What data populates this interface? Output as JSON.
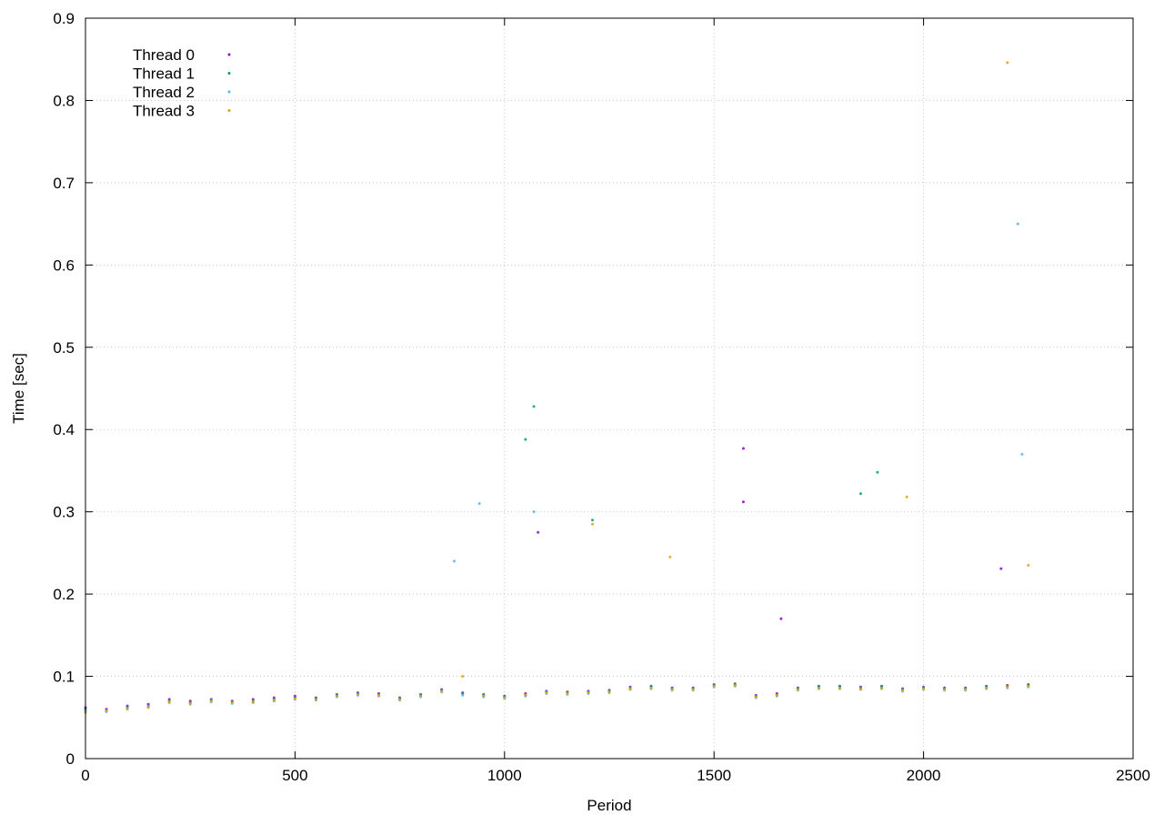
{
  "chart_data": {
    "type": "scatter",
    "title": "",
    "xlabel": "Period",
    "ylabel": "Time [sec]",
    "xlim": [
      0,
      2500
    ],
    "ylim": [
      0,
      0.9
    ],
    "xticks": [
      0,
      500,
      1000,
      1500,
      2000,
      2500
    ],
    "xtick_labels": [
      "0",
      "500",
      "1000",
      "1500",
      "2000",
      "2500"
    ],
    "yticks": [
      0,
      0.1,
      0.2,
      0.3,
      0.4,
      0.5,
      0.6,
      0.7,
      0.8,
      0.9
    ],
    "ytick_labels": [
      "0",
      "0.1",
      "0.2",
      "0.3",
      "0.4",
      "0.5",
      "0.6",
      "0.7",
      "0.8",
      "0.9"
    ],
    "grid": true,
    "legend_position": "top-left",
    "series": [
      {
        "name": "Thread 0",
        "color": "#9400d3",
        "points": [
          [
            0,
            0.062
          ],
          [
            50,
            0.06
          ],
          [
            100,
            0.064
          ],
          [
            150,
            0.066
          ],
          [
            200,
            0.072
          ],
          [
            250,
            0.07
          ],
          [
            300,
            0.072
          ],
          [
            350,
            0.07
          ],
          [
            400,
            0.072
          ],
          [
            450,
            0.074
          ],
          [
            500,
            0.076
          ],
          [
            550,
            0.074
          ],
          [
            600,
            0.078
          ],
          [
            650,
            0.08
          ],
          [
            700,
            0.079
          ],
          [
            750,
            0.074
          ],
          [
            800,
            0.078
          ],
          [
            850,
            0.084
          ],
          [
            900,
            0.08
          ],
          [
            950,
            0.078
          ],
          [
            1000,
            0.076
          ],
          [
            1050,
            0.079
          ],
          [
            1100,
            0.082
          ],
          [
            1150,
            0.081
          ],
          [
            1200,
            0.082
          ],
          [
            1250,
            0.083
          ],
          [
            1300,
            0.087
          ],
          [
            1350,
            0.088
          ],
          [
            1400,
            0.086
          ],
          [
            1450,
            0.086
          ],
          [
            1500,
            0.09
          ],
          [
            1550,
            0.091
          ],
          [
            1600,
            0.077
          ],
          [
            1650,
            0.079
          ],
          [
            1700,
            0.086
          ],
          [
            1750,
            0.088
          ],
          [
            1800,
            0.088
          ],
          [
            1850,
            0.087
          ],
          [
            1900,
            0.088
          ],
          [
            1950,
            0.085
          ],
          [
            2000,
            0.087
          ],
          [
            2050,
            0.086
          ],
          [
            2100,
            0.086
          ],
          [
            2150,
            0.088
          ],
          [
            2200,
            0.089
          ],
          [
            2250,
            0.09
          ],
          [
            1570,
            0.377
          ],
          [
            1570,
            0.312
          ],
          [
            1080,
            0.275
          ],
          [
            2185,
            0.231
          ],
          [
            1660,
            0.17
          ]
        ]
      },
      {
        "name": "Thread 1",
        "color": "#009e73",
        "points": [
          [
            0,
            0.06
          ],
          [
            50,
            0.058
          ],
          [
            100,
            0.062
          ],
          [
            150,
            0.064
          ],
          [
            200,
            0.07
          ],
          [
            250,
            0.068
          ],
          [
            300,
            0.071
          ],
          [
            350,
            0.069
          ],
          [
            400,
            0.07
          ],
          [
            450,
            0.072
          ],
          [
            500,
            0.074
          ],
          [
            550,
            0.073
          ],
          [
            600,
            0.077
          ],
          [
            650,
            0.079
          ],
          [
            700,
            0.078
          ],
          [
            750,
            0.073
          ],
          [
            800,
            0.077
          ],
          [
            850,
            0.083
          ],
          [
            900,
            0.079
          ],
          [
            950,
            0.077
          ],
          [
            1000,
            0.075
          ],
          [
            1050,
            0.078
          ],
          [
            1100,
            0.081
          ],
          [
            1150,
            0.08
          ],
          [
            1200,
            0.081
          ],
          [
            1250,
            0.082
          ],
          [
            1300,
            0.086
          ],
          [
            1350,
            0.087
          ],
          [
            1400,
            0.085
          ],
          [
            1450,
            0.085
          ],
          [
            1500,
            0.089
          ],
          [
            1550,
            0.09
          ],
          [
            1600,
            0.076
          ],
          [
            1650,
            0.078
          ],
          [
            1700,
            0.085
          ],
          [
            1750,
            0.087
          ],
          [
            1800,
            0.087
          ],
          [
            1850,
            0.086
          ],
          [
            1900,
            0.087
          ],
          [
            1950,
            0.084
          ],
          [
            2000,
            0.086
          ],
          [
            2050,
            0.085
          ],
          [
            2100,
            0.085
          ],
          [
            2150,
            0.087
          ],
          [
            2200,
            0.088
          ],
          [
            2250,
            0.089
          ],
          [
            1070,
            0.428
          ],
          [
            1050,
            0.388
          ],
          [
            1890,
            0.348
          ],
          [
            1850,
            0.322
          ],
          [
            1210,
            0.29
          ]
        ]
      },
      {
        "name": "Thread 2",
        "color": "#56b4e9",
        "points": [
          [
            0,
            0.058
          ],
          [
            50,
            0.057
          ],
          [
            100,
            0.061
          ],
          [
            150,
            0.063
          ],
          [
            200,
            0.068
          ],
          [
            250,
            0.066
          ],
          [
            300,
            0.069
          ],
          [
            350,
            0.067
          ],
          [
            400,
            0.068
          ],
          [
            450,
            0.07
          ],
          [
            500,
            0.072
          ],
          [
            550,
            0.071
          ],
          [
            600,
            0.075
          ],
          [
            650,
            0.077
          ],
          [
            700,
            0.076
          ],
          [
            750,
            0.071
          ],
          [
            800,
            0.075
          ],
          [
            850,
            0.081
          ],
          [
            900,
            0.077
          ],
          [
            950,
            0.075
          ],
          [
            1000,
            0.073
          ],
          [
            1050,
            0.076
          ],
          [
            1100,
            0.079
          ],
          [
            1150,
            0.078
          ],
          [
            1200,
            0.079
          ],
          [
            1250,
            0.08
          ],
          [
            1300,
            0.084
          ],
          [
            1350,
            0.085
          ],
          [
            1400,
            0.083
          ],
          [
            1450,
            0.083
          ],
          [
            1500,
            0.087
          ],
          [
            1550,
            0.088
          ],
          [
            1600,
            0.074
          ],
          [
            1650,
            0.076
          ],
          [
            1700,
            0.083
          ],
          [
            1750,
            0.085
          ],
          [
            1800,
            0.085
          ],
          [
            1850,
            0.084
          ],
          [
            1900,
            0.085
          ],
          [
            1950,
            0.082
          ],
          [
            2000,
            0.084
          ],
          [
            2050,
            0.083
          ],
          [
            2100,
            0.083
          ],
          [
            2150,
            0.085
          ],
          [
            2200,
            0.086
          ],
          [
            2250,
            0.087
          ],
          [
            2225,
            0.65
          ],
          [
            2235,
            0.37
          ],
          [
            940,
            0.31
          ],
          [
            1070,
            0.3
          ],
          [
            880,
            0.24
          ]
        ]
      },
      {
        "name": "Thread 3",
        "color": "#e69f00",
        "points": [
          [
            0,
            0.056
          ],
          [
            50,
            0.058
          ],
          [
            100,
            0.06
          ],
          [
            150,
            0.062
          ],
          [
            200,
            0.069
          ],
          [
            250,
            0.067
          ],
          [
            300,
            0.07
          ],
          [
            350,
            0.068
          ],
          [
            400,
            0.069
          ],
          [
            450,
            0.071
          ],
          [
            500,
            0.073
          ],
          [
            550,
            0.072
          ],
          [
            600,
            0.076
          ],
          [
            650,
            0.078
          ],
          [
            700,
            0.077
          ],
          [
            750,
            0.072
          ],
          [
            800,
            0.076
          ],
          [
            850,
            0.082
          ],
          [
            900,
            0.1
          ],
          [
            950,
            0.076
          ],
          [
            1000,
            0.074
          ],
          [
            1050,
            0.077
          ],
          [
            1100,
            0.08
          ],
          [
            1150,
            0.079
          ],
          [
            1200,
            0.08
          ],
          [
            1250,
            0.081
          ],
          [
            1300,
            0.085
          ],
          [
            1350,
            0.086
          ],
          [
            1400,
            0.084
          ],
          [
            1450,
            0.084
          ],
          [
            1500,
            0.088
          ],
          [
            1550,
            0.089
          ],
          [
            1600,
            0.075
          ],
          [
            1650,
            0.077
          ],
          [
            1700,
            0.084
          ],
          [
            1750,
            0.086
          ],
          [
            1800,
            0.086
          ],
          [
            1850,
            0.085
          ],
          [
            1900,
            0.086
          ],
          [
            1950,
            0.083
          ],
          [
            2000,
            0.085
          ],
          [
            2050,
            0.084
          ],
          [
            2100,
            0.084
          ],
          [
            2150,
            0.086
          ],
          [
            2200,
            0.087
          ],
          [
            2250,
            0.088
          ],
          [
            2200,
            0.846
          ],
          [
            1960,
            0.318
          ],
          [
            1210,
            0.285
          ],
          [
            1395,
            0.245
          ],
          [
            2250,
            0.235
          ]
        ]
      }
    ]
  }
}
